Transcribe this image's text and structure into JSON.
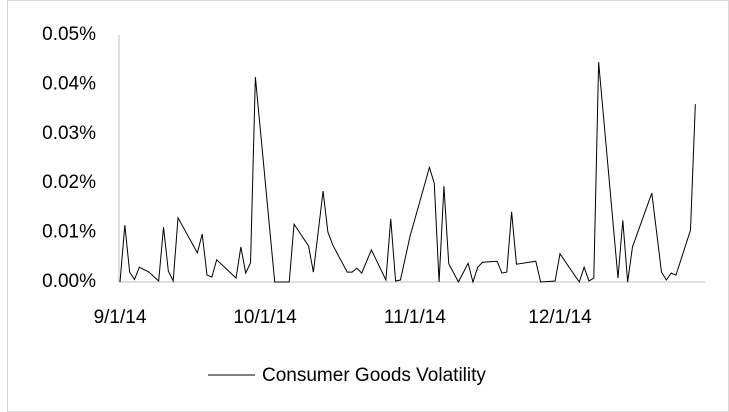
{
  "chart_data": {
    "type": "line",
    "x": [
      "9/1/14",
      "9/2/14",
      "9/3/14",
      "9/4/14",
      "9/5/14",
      "9/7/14",
      "9/9/14",
      "9/10/14",
      "9/11/14",
      "9/12/14",
      "9/13/14",
      "9/17/14",
      "9/18/14",
      "9/19/14",
      "9/20/14",
      "9/21/14",
      "9/25/14",
      "9/26/14",
      "9/27/14",
      "9/28/14",
      "9/29/14",
      "10/3/14",
      "10/6/14",
      "10/7/14",
      "10/10/14",
      "10/11/14",
      "10/13/14",
      "10/14/14",
      "10/15/14",
      "10/18/14",
      "10/19/14",
      "10/20/14",
      "10/21/14",
      "10/23/14",
      "10/26/14",
      "10/27/14",
      "10/28/14",
      "10/29/14",
      "10/31/14",
      "11/4/14",
      "11/5/14",
      "11/6/14",
      "11/7/14",
      "11/8/14",
      "11/10/14",
      "11/12/14",
      "11/13/14",
      "11/14/14",
      "11/15/14",
      "11/18/14",
      "11/19/14",
      "11/20/14",
      "11/21/14",
      "11/22/14",
      "11/26/14",
      "11/27/14",
      "11/30/14",
      "12/1/14",
      "12/5/14",
      "12/6/14",
      "12/7/14",
      "12/8/14",
      "12/9/14",
      "12/13/14",
      "12/14/14",
      "12/15/14",
      "12/16/14",
      "12/20/14",
      "12/22/14",
      "12/23/14",
      "12/24/14",
      "12/25/14",
      "12/28/14",
      "12/29/14"
    ],
    "series": [
      {
        "name": "Consumer Goods Volatility",
        "color": "#000000",
        "values": [
          0.0,
          0.0115,
          0.002,
          0.0005,
          0.003,
          0.002,
          0.0002,
          0.0111,
          0.0022,
          0.0002,
          0.013,
          0.0059,
          0.0097,
          0.0014,
          0.001,
          0.0045,
          0.0008,
          0.0071,
          0.0018,
          0.0039,
          0.0415,
          0.0,
          0.0,
          0.0117,
          0.0073,
          0.002,
          0.0184,
          0.0101,
          0.0075,
          0.002,
          0.002,
          0.0028,
          0.0018,
          0.0065,
          0.0004,
          0.0128,
          0.0002,
          0.0004,
          0.0093,
          0.0232,
          0.02,
          0.0,
          0.0194,
          0.0037,
          0.0,
          0.0038,
          0.0,
          0.003,
          0.004,
          0.0042,
          0.0018,
          0.002,
          0.0142,
          0.0036,
          0.0042,
          0.0,
          0.0002,
          0.0057,
          0.0,
          0.003,
          0.0002,
          0.0008,
          0.0445,
          0.0008,
          0.0125,
          0.0,
          0.0071,
          0.018,
          0.002,
          0.0004,
          0.0018,
          0.0014,
          0.0105,
          0.036
        ]
      }
    ],
    "xlim": [
      "9/1/14",
      "12/31/14"
    ],
    "xticks": [
      "9/1/14",
      "10/1/14",
      "11/1/14",
      "12/1/14"
    ],
    "ylim": [
      0,
      0.05
    ],
    "yticks": [
      {
        "value": 0,
        "label": "0.00%"
      },
      {
        "value": 0.01,
        "label": "0.01%"
      },
      {
        "value": 0.02,
        "label": "0.02%"
      },
      {
        "value": 0.03,
        "label": "0.03%"
      },
      {
        "value": 0.04,
        "label": "0.04%"
      },
      {
        "value": 0.05,
        "label": "0.05%"
      }
    ],
    "grid": false,
    "legend": "bottom"
  }
}
